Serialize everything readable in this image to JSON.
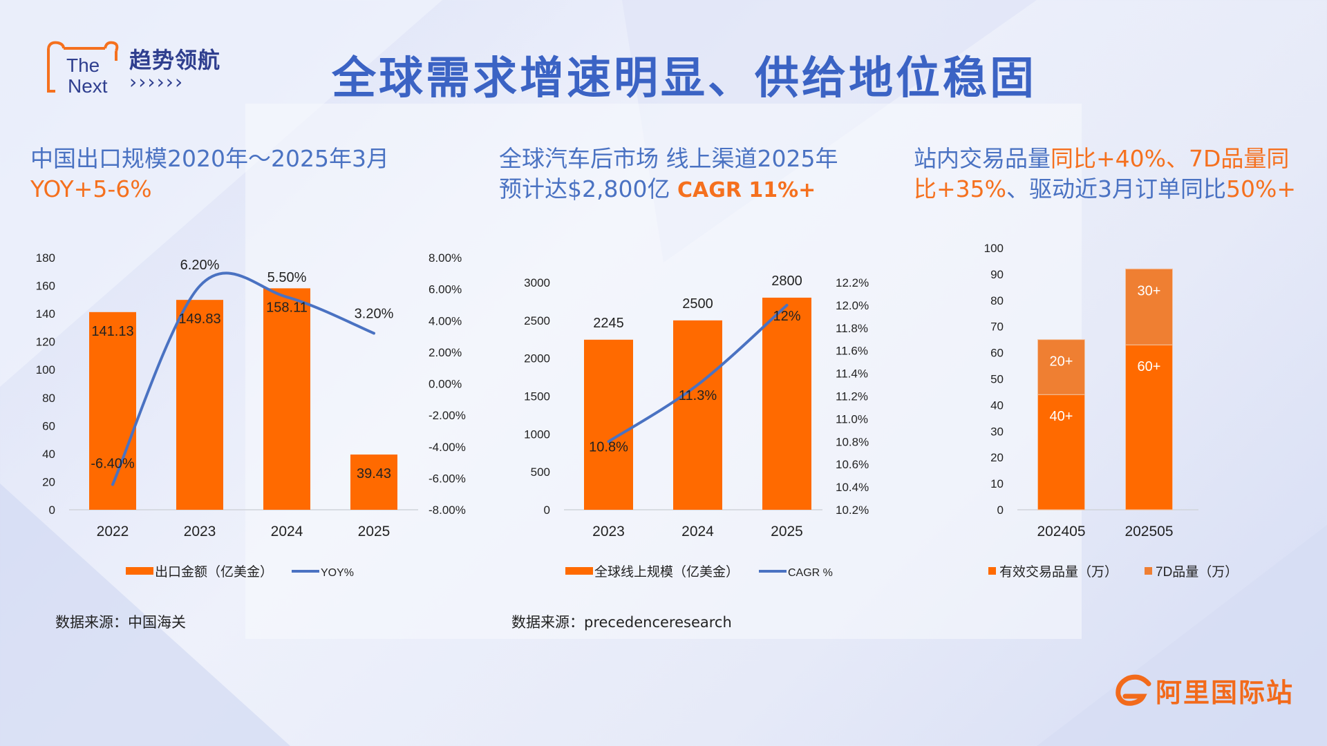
{
  "header": {
    "logo_en_1": "The",
    "logo_en_2": "Next",
    "logo_cn": "趋势领航",
    "logo_arrows": "››››››",
    "title": "全球需求增速明显、供给地位稳固"
  },
  "sections": [
    {
      "title_line1": "中国出口规模2020年～2025年3月",
      "title_line2_orange": "YOY+5-6%"
    },
    {
      "title_line1": "全球汽车后市场 线上渠道2025年",
      "title_line2_blue": "预计达$2,800亿 ",
      "title_line2_orange": "CAGR 11%+"
    },
    {
      "title_line1_blue": "站内交易品量",
      "title_line1_orange": "同比+40%、7D品量同",
      "title_line2_orange_a": "比+35%",
      "title_line2_blue": "、驱动近3月订单同比",
      "title_line2_orange_b": "50%+"
    }
  ],
  "sources": [
    "数据来源：中国海关",
    "数据来源：precedenceresearch"
  ],
  "brand": {
    "name": "阿里国际站"
  },
  "colors": {
    "bar": "#ff6a00",
    "bar_light": "#ef7f32",
    "line": "#4a72c2",
    "title_blue": "#3b63c4",
    "accent_orange": "#f5701e"
  },
  "chart_data": [
    {
      "type": "bar",
      "categories": [
        "2022",
        "2023",
        "2024",
        "2025"
      ],
      "series": [
        {
          "name": "出口金额（亿美金）",
          "type": "bar",
          "values": [
            141.13,
            149.83,
            158.11,
            39.43
          ],
          "labels": [
            "141.13",
            "149.83",
            "158.11",
            "39.43"
          ]
        },
        {
          "name": "YOY%",
          "type": "line",
          "axis": "right",
          "values": [
            -6.4,
            6.2,
            5.5,
            3.2
          ],
          "labels": [
            "-6.40%",
            "6.20%",
            "5.50%",
            "3.20%"
          ]
        }
      ],
      "ylim": [
        0,
        180
      ],
      "yticks": [
        "0",
        "20",
        "40",
        "60",
        "80",
        "100",
        "120",
        "140",
        "160",
        "180"
      ],
      "y2lim": [
        -8,
        8
      ],
      "y2ticks": [
        "-8.00%",
        "-6.00%",
        "-4.00%",
        "-2.00%",
        "0.00%",
        "2.00%",
        "4.00%",
        "6.00%",
        "8.00%"
      ],
      "legend": "bottom"
    },
    {
      "type": "bar",
      "categories": [
        "2023",
        "2024",
        "2025"
      ],
      "series": [
        {
          "name": "全球线上规模（亿美金）",
          "type": "bar",
          "values": [
            2245,
            2500,
            2800
          ],
          "labels": [
            "2245",
            "2500",
            "2800"
          ]
        },
        {
          "name": "CAGR %",
          "type": "line",
          "axis": "right",
          "values": [
            10.8,
            11.3,
            12.0
          ],
          "labels": [
            "10.8%",
            "11.3%",
            "12%"
          ]
        }
      ],
      "ylim": [
        0,
        3000
      ],
      "yticks": [
        "0",
        "500",
        "1000",
        "1500",
        "2000",
        "2500",
        "3000"
      ],
      "y2lim": [
        10.2,
        12.2
      ],
      "y2ticks": [
        "10.2%",
        "10.4%",
        "10.6%",
        "10.8%",
        "11.0%",
        "11.2%",
        "11.4%",
        "11.6%",
        "11.8%",
        "12.0%",
        "12.2%"
      ],
      "legend": "bottom"
    },
    {
      "type": "bar",
      "stacked": true,
      "categories": [
        "202405",
        "202505"
      ],
      "series": [
        {
          "name": "有效交易品量（万）",
          "values": [
            44,
            63
          ],
          "labels": [
            "40+",
            "60+"
          ]
        },
        {
          "name": "7D品量（万）",
          "values": [
            21,
            29
          ],
          "labels": [
            "20+",
            "30+"
          ]
        }
      ],
      "ylim": [
        0,
        100
      ],
      "yticks": [
        "0",
        "10",
        "20",
        "30",
        "40",
        "50",
        "60",
        "70",
        "80",
        "90",
        "100"
      ],
      "legend": "bottom"
    }
  ]
}
